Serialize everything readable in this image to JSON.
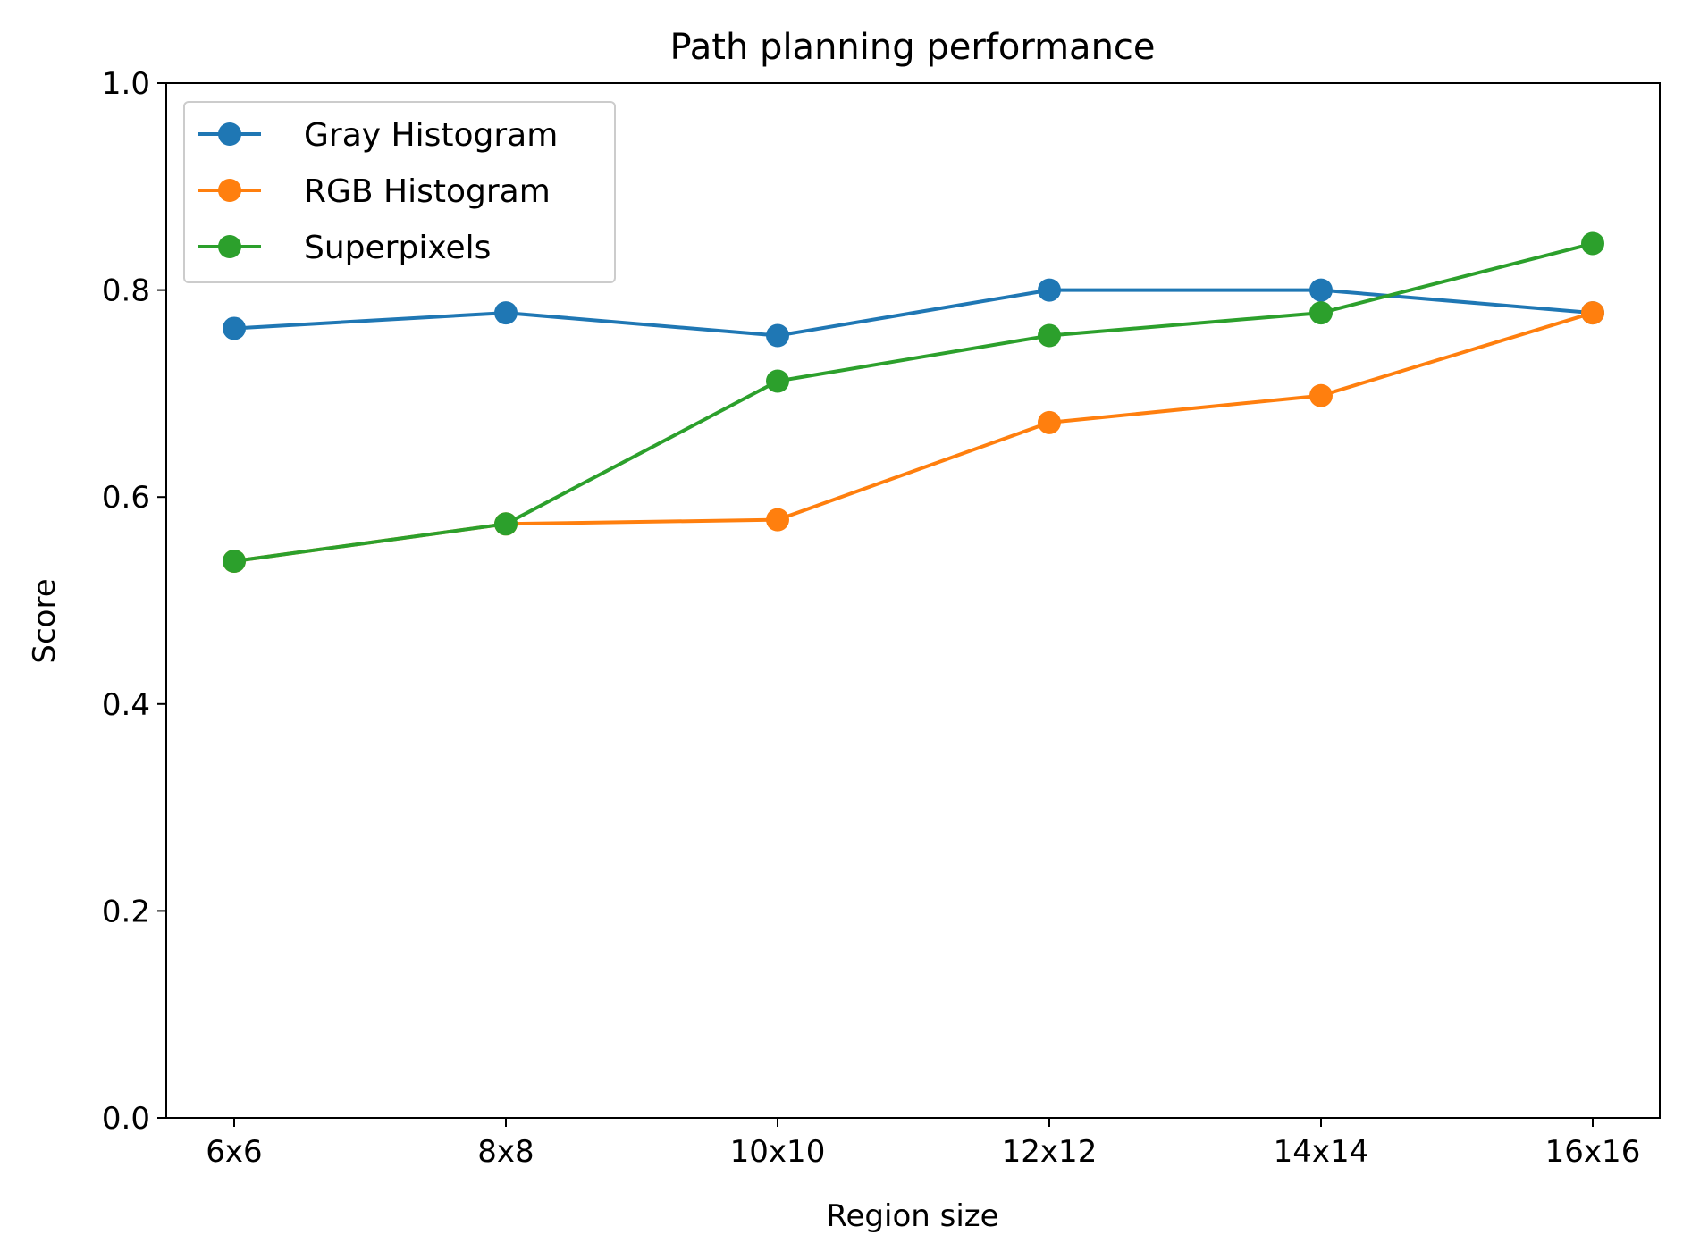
{
  "chart_data": {
    "type": "line",
    "title": "Path planning performance",
    "xlabel": "Region size",
    "ylabel": "Score",
    "categories": [
      "6x6",
      "8x8",
      "10x10",
      "12x12",
      "14x14",
      "16x16"
    ],
    "ylim": [
      0.0,
      1.0
    ],
    "yticks": [
      "0.0",
      "0.2",
      "0.4",
      "0.6",
      "0.8",
      "1.0"
    ],
    "grid": false,
    "legend_position": "upper-left",
    "series": [
      {
        "name": "Gray Histogram",
        "color": "#1f77b4",
        "marker": "circle",
        "values": [
          0.763,
          0.778,
          0.756,
          0.8,
          0.8,
          0.778
        ]
      },
      {
        "name": "RGB Histogram",
        "color": "#ff7f0e",
        "marker": "circle",
        "values": [
          0.538,
          0.574,
          0.578,
          0.672,
          0.698,
          0.778
        ]
      },
      {
        "name": "Superpixels",
        "color": "#2ca02c",
        "marker": "circle",
        "values": [
          0.538,
          0.574,
          0.712,
          0.756,
          0.778,
          0.845
        ]
      }
    ]
  }
}
